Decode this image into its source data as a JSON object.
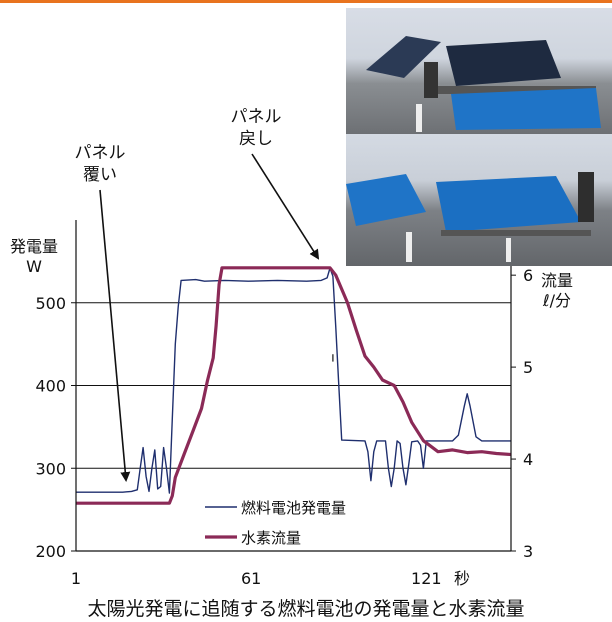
{
  "accent_colors": {
    "top_rule": "#e8731e",
    "power_line": "#1f2f6e",
    "hydrogen_line": "#8b2a57",
    "tarp": "#1f74c7"
  },
  "annotations": {
    "cover": "パネル\n覆い",
    "restore": "パネル\n戻し"
  },
  "caption": "太陽光発電に追随する燃料電池の発電量と水素流量",
  "chart_data": {
    "type": "line",
    "title": "",
    "xlabel": "秒",
    "ylabel_left": "発電量\nW",
    "ylabel_right": "流量\nℓ/分",
    "xlim": [
      1,
      150
    ],
    "ylim_left": [
      200,
      600
    ],
    "ylim_right": [
      3,
      6.6
    ],
    "x_ticks": [
      1,
      61,
      121
    ],
    "y_ticks_left": [
      200,
      300,
      400,
      500
    ],
    "y_ticks_right": [
      3,
      4,
      5,
      6
    ],
    "grid": "horizontal",
    "legend_position": "bottom-center",
    "series": [
      {
        "name": "燃料電池発電量",
        "axis": "left",
        "points": [
          [
            1,
            271
          ],
          [
            17,
            271
          ],
          [
            20,
            272
          ],
          [
            22,
            274
          ],
          [
            23,
            300
          ],
          [
            24,
            325
          ],
          [
            25,
            290
          ],
          [
            26,
            272
          ],
          [
            27,
            300
          ],
          [
            28,
            322
          ],
          [
            29,
            275
          ],
          [
            30,
            278
          ],
          [
            31,
            325
          ],
          [
            32,
            300
          ],
          [
            33,
            270
          ],
          [
            34,
            360
          ],
          [
            35,
            450
          ],
          [
            36,
            495
          ],
          [
            37,
            527
          ],
          [
            42,
            528
          ],
          [
            45,
            526
          ],
          [
            52,
            527
          ],
          [
            60,
            526
          ],
          [
            70,
            527
          ],
          [
            80,
            526
          ],
          [
            85,
            527
          ],
          [
            87,
            530
          ],
          [
            88,
            542
          ],
          [
            89,
            532
          ],
          [
            90,
            470
          ],
          [
            91,
            400
          ],
          [
            92,
            334
          ],
          [
            100,
            333
          ],
          [
            101,
            320
          ],
          [
            102,
            285
          ],
          [
            103,
            320
          ],
          [
            104,
            333
          ],
          [
            107,
            333
          ],
          [
            108,
            300
          ],
          [
            109,
            278
          ],
          [
            110,
            300
          ],
          [
            111,
            333
          ],
          [
            112,
            330
          ],
          [
            113,
            300
          ],
          [
            114,
            280
          ],
          [
            115,
            305
          ],
          [
            116,
            332
          ],
          [
            118,
            333
          ],
          [
            119,
            328
          ],
          [
            120,
            300
          ],
          [
            121,
            333
          ],
          [
            130,
            333
          ],
          [
            132,
            340
          ],
          [
            134,
            375
          ],
          [
            135,
            390
          ],
          [
            136,
            375
          ],
          [
            138,
            338
          ],
          [
            140,
            333
          ],
          [
            150,
            333
          ]
        ]
      },
      {
        "name": "水素流量",
        "axis": "right",
        "points": [
          [
            1,
            3.52
          ],
          [
            33,
            3.52
          ],
          [
            34,
            3.6
          ],
          [
            35,
            3.8
          ],
          [
            38,
            4.05
          ],
          [
            41,
            4.3
          ],
          [
            44,
            4.55
          ],
          [
            46,
            4.85
          ],
          [
            48,
            5.1
          ],
          [
            49,
            5.45
          ],
          [
            50,
            5.9
          ],
          [
            51,
            6.08
          ],
          [
            88,
            6.08
          ],
          [
            90,
            6.0
          ],
          [
            94,
            5.7
          ],
          [
            97,
            5.4
          ],
          [
            100,
            5.12
          ],
          [
            103,
            5.0
          ],
          [
            106,
            4.86
          ],
          [
            110,
            4.8
          ],
          [
            113,
            4.62
          ],
          [
            116,
            4.4
          ],
          [
            120,
            4.2
          ],
          [
            125,
            4.08
          ],
          [
            130,
            4.1
          ],
          [
            135,
            4.07
          ],
          [
            140,
            4.08
          ],
          [
            145,
            4.06
          ],
          [
            150,
            4.05
          ]
        ]
      }
    ]
  }
}
